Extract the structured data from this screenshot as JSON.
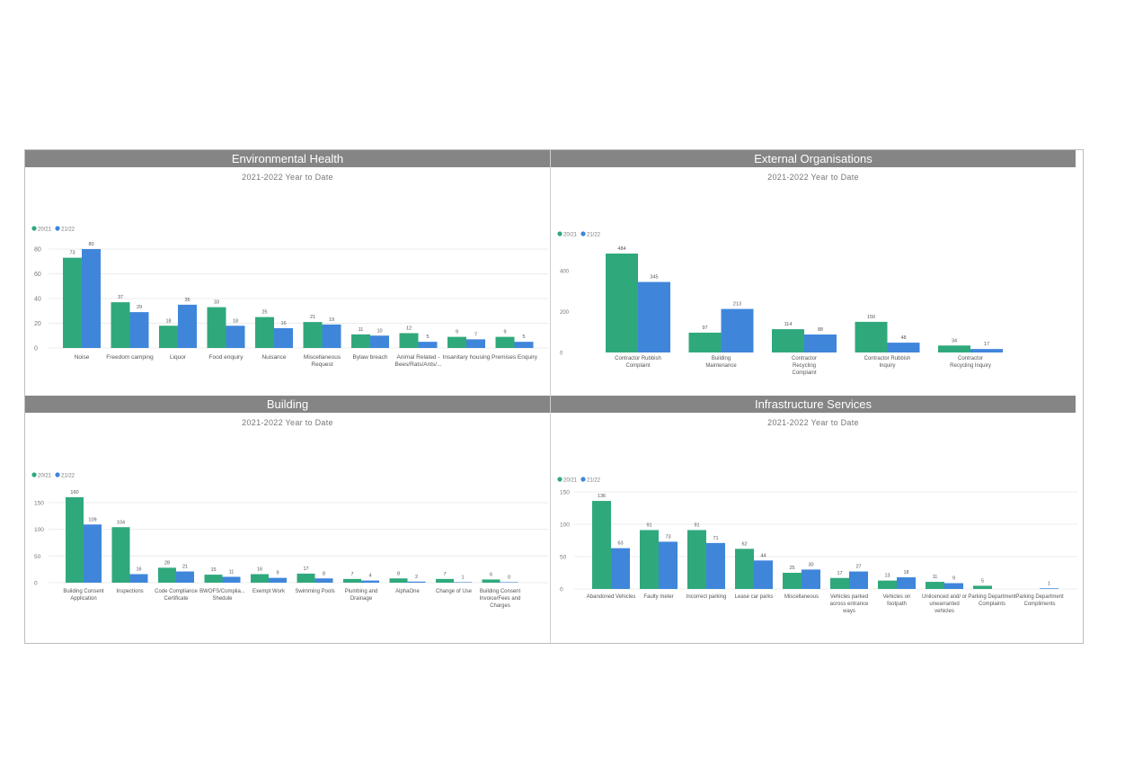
{
  "colors": {
    "series_a": "#2fa97c",
    "series_b": "#3f86db",
    "header_bg": "#858585",
    "axis_text": "#777777"
  },
  "panels": [
    {
      "title": "Environmental Health",
      "subtitle": "2021-2022 Year to Date"
    },
    {
      "title": "External Organisations",
      "subtitle": "2021-2022 Year to Date"
    },
    {
      "title": "Building",
      "subtitle": "2021-2022 Year to Date"
    },
    {
      "title": "Infrastructure Services",
      "subtitle": "2021-2022 Year to Date"
    }
  ],
  "chart_data": [
    {
      "type": "bar",
      "title": "Environmental Health",
      "subtitle": "2021-2022 Year to Date",
      "legend": [
        "20/21",
        "21/22"
      ],
      "categories": [
        "Noise",
        "Freedom camping",
        "Liquor",
        "Food enquiry",
        "Nuisance",
        "Miscellaneous Request",
        "Bylaw breach",
        "Animal Related - Bees/Rats/Ants/...",
        "Insanitary housing",
        "Premises Enquiry"
      ],
      "series": [
        {
          "name": "20/21",
          "values": [
            73,
            37,
            18,
            33,
            25,
            21,
            11,
            12,
            9,
            9
          ]
        },
        {
          "name": "21/22",
          "values": [
            80,
            29,
            35,
            18,
            16,
            19,
            10,
            5,
            7,
            5
          ]
        }
      ],
      "yticks": [
        0,
        20,
        40,
        60,
        80
      ],
      "ylim": [
        0,
        80
      ],
      "grid": true,
      "legend_position": "top-left"
    },
    {
      "type": "bar",
      "title": "External Organisations",
      "subtitle": "2021-2022 Year to Date",
      "legend": [
        "20/21",
        "21/22"
      ],
      "categories": [
        "Contractor Rubbish Complaint",
        "Building Maintenance",
        "Contractor Recycling Complaint",
        "Contractor Rubbish Inquiry",
        "Contractor Recycling Inquiry"
      ],
      "series": [
        {
          "name": "20/21",
          "values": [
            484,
            97,
            114,
            150,
            34
          ]
        },
        {
          "name": "21/22",
          "values": [
            345,
            213,
            88,
            48,
            17
          ]
        }
      ],
      "yticks": [
        0,
        200,
        400
      ],
      "ylim": [
        0,
        484
      ],
      "grid": false,
      "legend_position": "top-left"
    },
    {
      "type": "bar",
      "title": "Building",
      "subtitle": "2021-2022 Year to Date",
      "legend": [
        "20/21",
        "21/22"
      ],
      "categories": [
        "Building Consent Application",
        "Inspections",
        "Code Compliance Certificate",
        "BWOFS/Complia... Shedule",
        "Exempt Work",
        "Swimming Pools",
        "Plumbing and Drainage",
        "AlphaOne",
        "Change of Use",
        "Building Consent Invoice/Fees and Charges"
      ],
      "series": [
        {
          "name": "20/21",
          "values": [
            160,
            104,
            28,
            15,
            16,
            17,
            7,
            8,
            7,
            6
          ]
        },
        {
          "name": "21/22",
          "values": [
            109,
            16,
            21,
            11,
            9,
            8,
            4,
            2,
            1,
            0
          ]
        }
      ],
      "yticks": [
        0,
        50,
        100,
        150
      ],
      "ylim": [
        0,
        160
      ],
      "grid": true,
      "legend_position": "top-left"
    },
    {
      "type": "bar",
      "title": "Infrastructure Services",
      "subtitle": "2021-2022 Year to Date",
      "legend": [
        "20/21",
        "21/22"
      ],
      "categories": [
        "Abandoned Vehicles",
        "Faulty meter",
        "Incorrect parking",
        "Lease car parks",
        "Miscellaneous",
        "Vehicles parked across entrance ways",
        "Vehicles on footpath",
        "Unlicenced and/ or unwarranted vehicles",
        "Parking Department Complaints",
        "Parking Department Compliments"
      ],
      "series": [
        {
          "name": "20/21",
          "values": [
            136,
            91,
            91,
            62,
            25,
            17,
            13,
            11,
            5,
            null
          ]
        },
        {
          "name": "21/22",
          "values": [
            63,
            73,
            71,
            44,
            30,
            27,
            18,
            9,
            null,
            1
          ]
        }
      ],
      "yticks": [
        0,
        50,
        100,
        150
      ],
      "ylim": [
        0,
        150
      ],
      "grid": true,
      "legend_position": "top-left"
    }
  ]
}
